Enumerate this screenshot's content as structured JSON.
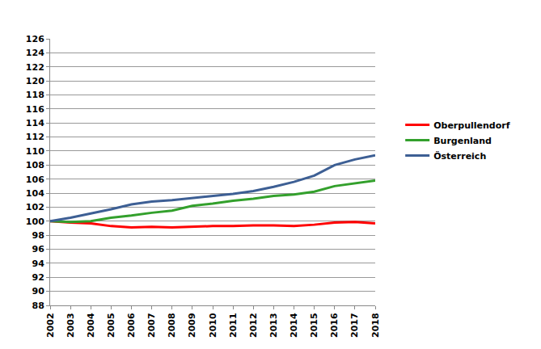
{
  "chart_data": {
    "type": "line",
    "x": [
      2002,
      2003,
      2004,
      2005,
      2006,
      2007,
      2008,
      2009,
      2010,
      2011,
      2012,
      2013,
      2014,
      2015,
      2016,
      2017,
      2018
    ],
    "series": [
      {
        "name": "Oberpullendorf",
        "color": "#ff0000",
        "values": [
          100,
          99.8,
          99.7,
          99.3,
          99.1,
          99.2,
          99.1,
          99.2,
          99.3,
          99.3,
          99.4,
          99.4,
          99.3,
          99.5,
          99.8,
          99.9,
          99.7
        ]
      },
      {
        "name": "Burgenland",
        "color": "#33a02c",
        "values": [
          100,
          99.9,
          100.0,
          100.5,
          100.8,
          101.2,
          101.5,
          102.2,
          102.5,
          102.9,
          103.2,
          103.6,
          103.8,
          104.2,
          105.0,
          105.4,
          105.8
        ]
      },
      {
        "name": "Österreich",
        "color": "#3d5f94",
        "values": [
          100,
          100.5,
          101.1,
          101.7,
          102.4,
          102.8,
          103.0,
          103.3,
          103.6,
          103.9,
          104.3,
          104.9,
          105.6,
          106.5,
          108.0,
          108.8,
          109.4
        ]
      }
    ],
    "xlim": [
      2002,
      2018
    ],
    "xticks": [
      2002,
      2003,
      2004,
      2005,
      2006,
      2007,
      2008,
      2009,
      2010,
      2011,
      2012,
      2013,
      2014,
      2015,
      2016,
      2017,
      2018
    ],
    "ylim": [
      88,
      126
    ],
    "yticks": [
      88,
      90,
      92,
      94,
      96,
      98,
      100,
      102,
      104,
      106,
      108,
      110,
      112,
      114,
      116,
      118,
      120,
      122,
      124,
      126
    ],
    "grid": true,
    "legend": "right"
  }
}
